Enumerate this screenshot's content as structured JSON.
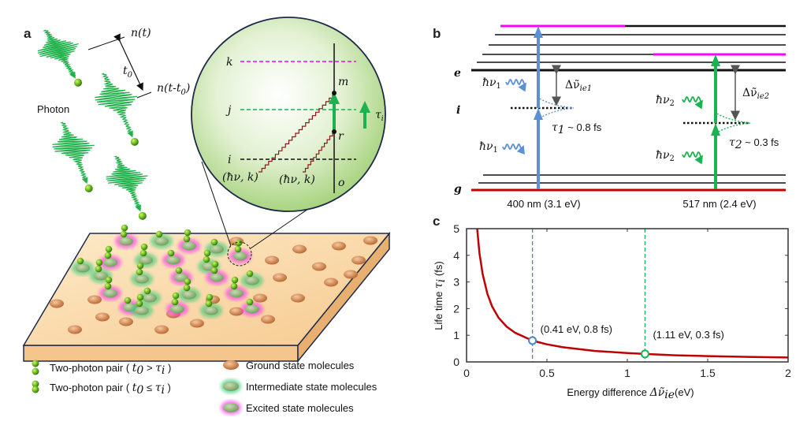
{
  "panel_a": {
    "label": "a",
    "n_t": "n(t)",
    "n_t_t0": "n(t-t",
    "n_t_t0_sub": "0",
    "n_t_t0_close": ")",
    "t0": "t",
    "t0_sub": "0",
    "photon": "Photon",
    "zoom_levels": {
      "k": "k",
      "j": "j",
      "i": "i",
      "m": "m",
      "r": "r",
      "o": "o",
      "tau": "τ",
      "tau_sub": "i",
      "hv_k_1": "(ħν, k)",
      "hv_k_2": "(ħν, k)"
    },
    "legend": [
      {
        "text": "Two-photon pair ( ",
        "var": "t",
        "var_sub": "0",
        "op": " > ",
        "tau": "τ",
        "tau_sub": "i",
        "close": " )"
      },
      {
        "text": "Two-photon pair ( ",
        "var": "t",
        "var_sub": "0",
        "op": " ≤ ",
        "tau": "τ",
        "tau_sub": "i",
        "close": " )"
      },
      {
        "text": "Ground state molecules"
      },
      {
        "text": "Intermediate state molecules"
      },
      {
        "text": "Excited state molecules"
      }
    ],
    "colors": {
      "photon": "#22b14c",
      "ground": "#c8743c",
      "intermediate_glow": "#3ccf7a",
      "excited_glow": "#ff3cf0",
      "slab": "#f8d6a6",
      "circle": "#b9dd94"
    }
  },
  "panel_b": {
    "label": "b",
    "level_e": "e",
    "level_i": "i",
    "level_g": "g",
    "hv1": "ħν",
    "hv1_sub": "1",
    "hv2": "ħν",
    "hv2_sub": "2",
    "delta1": "Δν̃",
    "delta1_sub": "ie1",
    "delta2": "Δν̃",
    "delta2_sub": "ie2",
    "tau1": "τ",
    "tau1_sub": "1",
    "tau1_val": " ~ 0.8 fs",
    "tau2": "τ",
    "tau2_sub": "2",
    "tau2_val": " ~ 0.3 fs",
    "wl1": "400 nm (3.1 eV)",
    "wl2": "517 nm (2.4 eV)",
    "colors": {
      "blue": "#5b8fd6",
      "green": "#1bb350",
      "magenta": "#ff00ff",
      "ground": "#c00000"
    }
  },
  "chart_data": {
    "type": "line",
    "label": "c",
    "xlabel": "Energy difference ",
    "xlabel_sym": "Δν̃",
    "xlabel_sub": "ie",
    "xlabel_unit": "(eV)",
    "ylabel": "Life time ",
    "ylabel_sym": "τ",
    "ylabel_sub": "i",
    "ylabel_unit": " (fs)",
    "xlim": [
      0,
      2
    ],
    "ylim": [
      0,
      5
    ],
    "xticks": [
      "0",
      "0.5",
      "1",
      "1.5",
      "2"
    ],
    "yticks": [
      "0",
      "1",
      "2",
      "3",
      "4",
      "5"
    ],
    "series": [
      {
        "color": "#c00000",
        "x": [
          0.066,
          0.08,
          0.1,
          0.13,
          0.16,
          0.2,
          0.25,
          0.3,
          0.41,
          0.5,
          0.6,
          0.8,
          1.0,
          1.11,
          1.3,
          1.5,
          1.75,
          2.0
        ],
        "y": [
          5.0,
          4.1,
          3.3,
          2.55,
          2.07,
          1.65,
          1.32,
          1.1,
          0.8,
          0.66,
          0.55,
          0.41,
          0.33,
          0.3,
          0.25,
          0.22,
          0.19,
          0.165
        ]
      }
    ],
    "markers": [
      {
        "x": 0.41,
        "y": 0.8,
        "label": "(0.41 eV, 0.8 fs)",
        "color": "#4a86d0"
      },
      {
        "x": 1.11,
        "y": 0.3,
        "label": "(1.11 eV, 0.3 fs)",
        "color": "#1bb350"
      }
    ],
    "grid": false
  }
}
